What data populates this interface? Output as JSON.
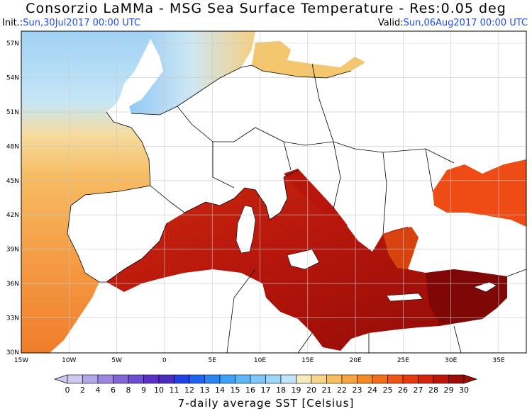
{
  "header": {
    "title": "Consorzio LaMMa -  MSG Sea Surface Temperature - Res:0.05 deg",
    "init_label": "Init.:",
    "init_value": "Sun,30Jul2017 00:00 UTC",
    "valid_label": "Valid:",
    "valid_value": "Sun,06Aug2017 00:00 UTC"
  },
  "map": {
    "lat_ticks": [
      "57N",
      "54N",
      "51N",
      "48N",
      "45N",
      "42N",
      "39N",
      "36N",
      "33N",
      "30N"
    ],
    "lon_ticks": [
      "15W",
      "10W",
      "5W",
      "0",
      "5E",
      "10E",
      "15E",
      "20E",
      "25E",
      "30E",
      "35E"
    ]
  },
  "colorbar": {
    "labels": [
      "0",
      "2",
      "4",
      "6",
      "8",
      "9",
      "10",
      "11",
      "12",
      "13",
      "14",
      "15",
      "16",
      "17",
      "18",
      "19",
      "20",
      "21",
      "22",
      "23",
      "24",
      "25",
      "26",
      "27",
      "28",
      "29",
      "30"
    ],
    "colors": [
      "#cfc9ee",
      "#b4a9e8",
      "#9b87e0",
      "#8166d8",
      "#6c4ed2",
      "#5a2fc8",
      "#4b2cc2",
      "#2340e6",
      "#1f63f0",
      "#2a85f4",
      "#3aa2f7",
      "#5cb6f8",
      "#7ec7f8",
      "#9fd6fa",
      "#bfe6fb",
      "#f5ecbe",
      "#f8d68c",
      "#f8bf5d",
      "#f6a63d",
      "#f48b25",
      "#f26f18",
      "#ee5412",
      "#e33a0f",
      "#d4240d",
      "#bd140b",
      "#9e0b09"
    ],
    "title": "7-daily average SST [Celsius]"
  },
  "colors": {
    "land": "#ffffff",
    "border": "#000000",
    "accent_blue": "#1f4cff"
  }
}
